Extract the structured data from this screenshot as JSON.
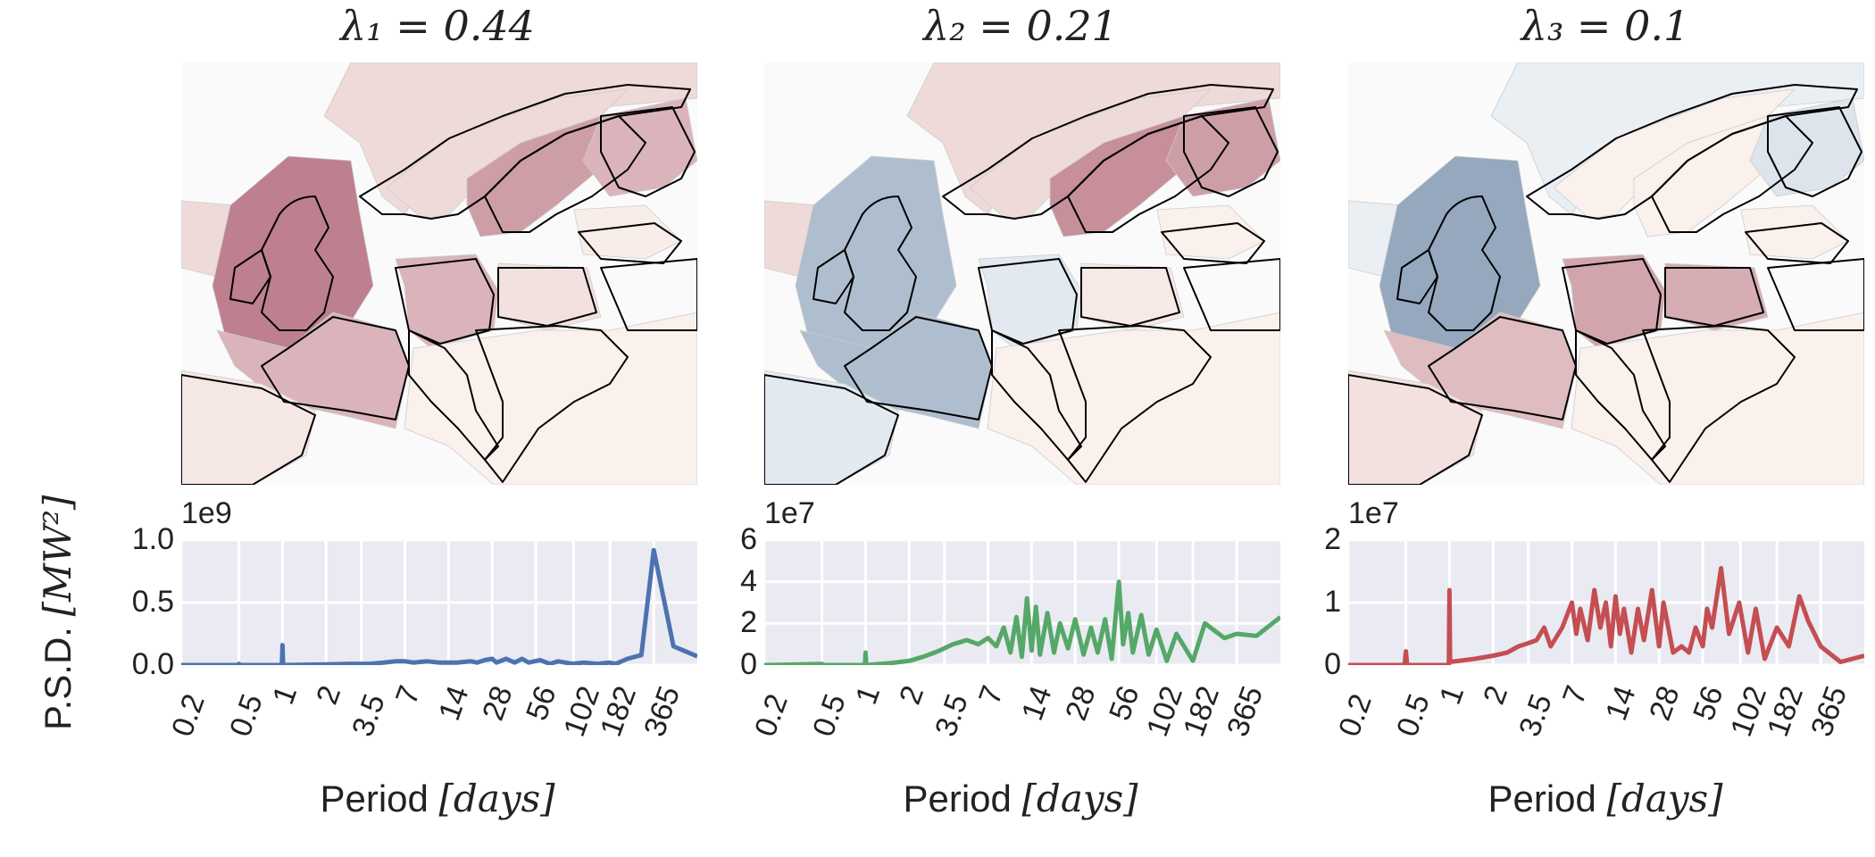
{
  "figure": {
    "ylabel": "P.S.D. [MW²]",
    "ylabel_text": "P.S.D. ",
    "ylabel_math": "[MW²]",
    "xlabel_text": "Period ",
    "xlabel_math": "[days]"
  },
  "panels": [
    {
      "title": "λ₁ = 0.44",
      "exponent": "1e9",
      "color": "#4c72b0",
      "map_palette": "reds",
      "map_regions": {
        "iceland_north_sea": 0.15,
        "uk_ireland": 0.75,
        "norway": 0.15,
        "sweden": 0.55,
        "finland": 0.4,
        "france": 0.4,
        "germany": 0.4,
        "poland": 0.1,
        "iberia": 0.06,
        "baltics": 0.02,
        "south_east": 0.0
      },
      "yticks": [
        "1.0",
        "0.5",
        "0.0"
      ],
      "ylim": [
        0,
        1.0
      ]
    },
    {
      "title": "λ₂ = 0.21",
      "exponent": "1e7",
      "color": "#55a868",
      "map_palette": "diverging",
      "map_regions": {
        "iceland_north_sea": 0.15,
        "uk_ireland": -0.5,
        "norway": 0.15,
        "sweden": 0.65,
        "finland": 0.55,
        "france": -0.5,
        "germany": -0.1,
        "poland": 0.05,
        "iberia": -0.1,
        "baltics": 0.0,
        "south_east": 0.0
      },
      "yticks": [
        "6",
        "4",
        "2",
        "0"
      ],
      "ylim": [
        0,
        6
      ]
    },
    {
      "title": "λ₃ = 0.1",
      "exponent": "1e7",
      "color": "#c44e52",
      "map_palette": "diverging",
      "map_regions": {
        "iceland_north_sea": -0.05,
        "uk_ireland": -0.7,
        "norway": 0.0,
        "sweden": 0.0,
        "finland": -0.15,
        "france": 0.35,
        "germany": 0.5,
        "poland": 0.45,
        "iberia": 0.1,
        "baltics": 0.0,
        "south_east": 0.0
      },
      "yticks": [
        "2",
        "1",
        "0"
      ],
      "ylim": [
        0,
        2
      ]
    }
  ],
  "chart_data": [
    {
      "type": "line",
      "title": "λ₁ = 0.44",
      "xlabel": "Period [days]",
      "ylabel": "P.S.D. [MW²]",
      "x_scale": "log",
      "x_ticks": [
        "0.2",
        "0.5",
        "1",
        "2",
        "3.5",
        "7",
        "14",
        "28",
        "56",
        "102",
        "182",
        "365"
      ],
      "xlim": [
        0.2,
        730
      ],
      "y_multiplier": "1e9",
      "ylim": [
        0,
        1.0
      ],
      "grid": true,
      "x": [
        0.2,
        0.49,
        0.5,
        0.51,
        0.99,
        1.0,
        1.01,
        2,
        3,
        4,
        5,
        6,
        7,
        8,
        10,
        12,
        14,
        16,
        20,
        22,
        25,
        28,
        30,
        35,
        40,
        45,
        50,
        60,
        70,
        80,
        100,
        120,
        150,
        180,
        200,
        240,
        300,
        365,
        500,
        730
      ],
      "y": [
        0,
        0,
        0.01,
        0,
        0,
        0.16,
        0,
        0.005,
        0.01,
        0.01,
        0.02,
        0.03,
        0.03,
        0.02,
        0.03,
        0.02,
        0.02,
        0.02,
        0.03,
        0.02,
        0.04,
        0.05,
        0.02,
        0.05,
        0.02,
        0.05,
        0.02,
        0.04,
        0.01,
        0.03,
        0.01,
        0.02,
        0.01,
        0.02,
        0.01,
        0.05,
        0.08,
        0.92,
        0.15,
        0.07
      ],
      "series": [
        {
          "values_per_x": true
        }
      ]
    },
    {
      "type": "line",
      "title": "λ₂ = 0.21",
      "xlabel": "Period [days]",
      "ylabel": "P.S.D. [MW²]",
      "x_scale": "log",
      "x_ticks": [
        "0.2",
        "0.5",
        "1",
        "2",
        "3.5",
        "7",
        "14",
        "28",
        "56",
        "102",
        "182",
        "365"
      ],
      "xlim": [
        0.2,
        730
      ],
      "y_multiplier": "1e7",
      "ylim": [
        0,
        6
      ],
      "grid": true,
      "x": [
        0.2,
        0.5,
        0.51,
        0.99,
        1.0,
        1.01,
        1.5,
        2,
        2.5,
        3,
        3.5,
        4,
        4.5,
        5,
        6,
        7,
        8,
        9,
        10,
        11,
        12,
        13,
        14,
        15,
        16,
        18,
        20,
        22,
        25,
        28,
        32,
        36,
        40,
        45,
        50,
        56,
        60,
        65,
        70,
        80,
        90,
        102,
        120,
        140,
        182,
        220,
        300,
        365,
        500,
        730
      ],
      "y": [
        0,
        0.05,
        0,
        0,
        0.6,
        0,
        0.1,
        0.2,
        0.4,
        0.6,
        0.8,
        1.0,
        1.1,
        1.2,
        1.0,
        1.3,
        0.9,
        1.8,
        0.6,
        2.3,
        0.4,
        3.2,
        0.7,
        2.8,
        0.5,
        2.5,
        0.6,
        2.0,
        0.8,
        2.2,
        0.5,
        1.8,
        0.6,
        2.2,
        0.3,
        4.0,
        1.0,
        2.5,
        0.6,
        2.4,
        0.5,
        1.7,
        0.2,
        1.5,
        0.2,
        2.0,
        1.3,
        1.5,
        1.4,
        2.3
      ],
      "series": [
        {
          "values_per_x": true
        }
      ]
    },
    {
      "type": "line",
      "title": "λ₃ = 0.1",
      "xlabel": "Period [days]",
      "ylabel": "P.S.D. [MW²]",
      "x_scale": "log",
      "x_ticks": [
        "0.2",
        "0.5",
        "1",
        "2",
        "3.5",
        "7",
        "14",
        "28",
        "56",
        "102",
        "182",
        "365"
      ],
      "xlim": [
        0.2,
        730
      ],
      "y_multiplier": "1e7",
      "ylim": [
        0,
        2
      ],
      "grid": true,
      "x": [
        0.2,
        0.49,
        0.5,
        0.51,
        0.99,
        1.0,
        1.01,
        1.5,
        2,
        2.5,
        3,
        3.5,
        4,
        4.5,
        5,
        6,
        7,
        7.5,
        8,
        9,
        10,
        11,
        12,
        13,
        14,
        15,
        16,
        18,
        20,
        22,
        25,
        28,
        30,
        35,
        40,
        45,
        50,
        56,
        60,
        65,
        75,
        85,
        100,
        115,
        130,
        150,
        182,
        220,
        260,
        300,
        365,
        500,
        730
      ],
      "y": [
        0,
        0,
        0.22,
        0,
        0,
        1.2,
        0.05,
        0.1,
        0.15,
        0.2,
        0.3,
        0.35,
        0.4,
        0.6,
        0.3,
        0.6,
        1.0,
        0.5,
        0.9,
        0.4,
        1.2,
        0.6,
        1.0,
        0.3,
        1.1,
        0.5,
        0.9,
        0.2,
        0.9,
        0.4,
        1.2,
        0.3,
        1.0,
        0.2,
        0.3,
        0.2,
        0.6,
        0.3,
        0.9,
        0.6,
        1.55,
        0.5,
        1.0,
        0.2,
        0.9,
        0.1,
        0.6,
        0.3,
        1.1,
        0.7,
        0.3,
        0.05,
        0.15
      ],
      "series": [
        {
          "values_per_x": true
        }
      ]
    }
  ]
}
